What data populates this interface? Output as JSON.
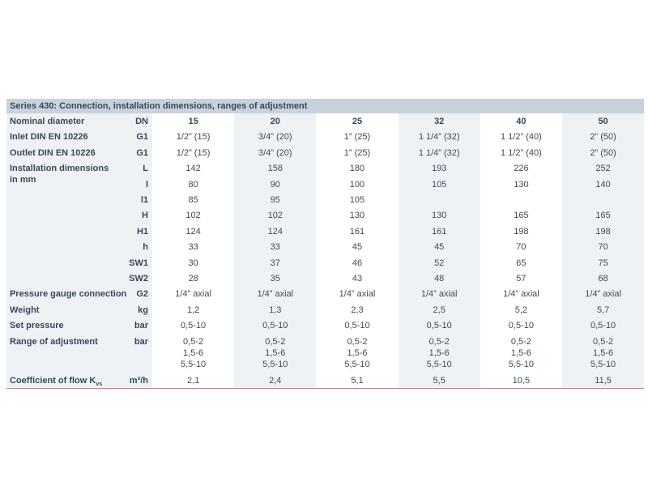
{
  "table": {
    "title": "Series 430: Connection, installation dimensions, ranges of adjustment",
    "rows": [
      {
        "label": "Nominal diameter",
        "unit": "DN",
        "values": [
          "15",
          "20",
          "25",
          "32",
          "40",
          "50"
        ]
      },
      {
        "label": "Inlet DIN EN 10226",
        "unit": "G1",
        "values": [
          "1/2” (15)",
          "3/4” (20)",
          "1” (25)",
          "1 1/4” (32)",
          "1 1/2” (40)",
          "2” (50)"
        ]
      },
      {
        "label": "Outlet DIN EN 10226",
        "unit": "G1",
        "values": [
          "1/2” (15)",
          "3/4” (20)",
          "1” (25)",
          "1 1/4” (32)",
          "1 1/2” (40)",
          "2” (50)"
        ]
      },
      {
        "label": "Installation dimensions in mm",
        "unit": "L",
        "values": [
          "142",
          "158",
          "180",
          "193",
          "226",
          "252"
        ]
      },
      {
        "unit": "l",
        "values": [
          "80",
          "90",
          "100",
          "105",
          "130",
          "140"
        ]
      },
      {
        "unit": "l1",
        "values": [
          "85",
          "95",
          "105",
          null,
          null,
          null
        ]
      },
      {
        "unit": "H",
        "values": [
          "102",
          "102",
          "130",
          "130",
          "165",
          "165"
        ]
      },
      {
        "unit": "H1",
        "values": [
          "124",
          "124",
          "161",
          "161",
          "198",
          "198"
        ]
      },
      {
        "unit": "h",
        "values": [
          "33",
          "33",
          "45",
          "45",
          "70",
          "70"
        ]
      },
      {
        "unit": "SW1",
        "values": [
          "30",
          "37",
          "46",
          "52",
          "65",
          "75"
        ]
      },
      {
        "unit": "SW2",
        "values": [
          "28",
          "35",
          "43",
          "48",
          "57",
          "68"
        ]
      },
      {
        "label": "Pressure gauge connection",
        "unit": "G2",
        "values": [
          "1/4” axial",
          "1/4” axial",
          "1/4” axial",
          "1/4” axial",
          "1/4” axial",
          "1/4” axial"
        ]
      },
      {
        "label": "Weight",
        "unit": "kg",
        "values": [
          "1,2",
          "1,3",
          "2,3",
          "2,5",
          "5,2",
          "5,7"
        ]
      },
      {
        "label": "Set pressure",
        "unit": "bar",
        "values": [
          "0,5-10",
          "0,5-10",
          "0,5-10",
          "0,5-10",
          "0,5-10",
          "0,5-10"
        ]
      },
      {
        "label": "Range of adjustment",
        "unit": "bar",
        "values": [
          [
            "0,5-2",
            "1,5-6",
            "5,5-10"
          ],
          [
            "0,5-2",
            "1,5-6",
            "5,5-10"
          ],
          [
            "0,5-2",
            "1,5-6",
            "5,5-10"
          ],
          [
            "0,5-2",
            "1,5-6",
            "5,5-10"
          ],
          [
            "0,5-2",
            "1,5-6",
            "5,5-10"
          ],
          [
            "0,5-2",
            "1,5-6",
            "5,5-10"
          ]
        ]
      },
      {
        "label": "Coefficient of flow K",
        "label_sub": "vs",
        "unit": "m³/h",
        "values": [
          "2,1",
          "2,4",
          "5,1",
          "5,5",
          "10,5",
          "11,5"
        ]
      }
    ]
  }
}
